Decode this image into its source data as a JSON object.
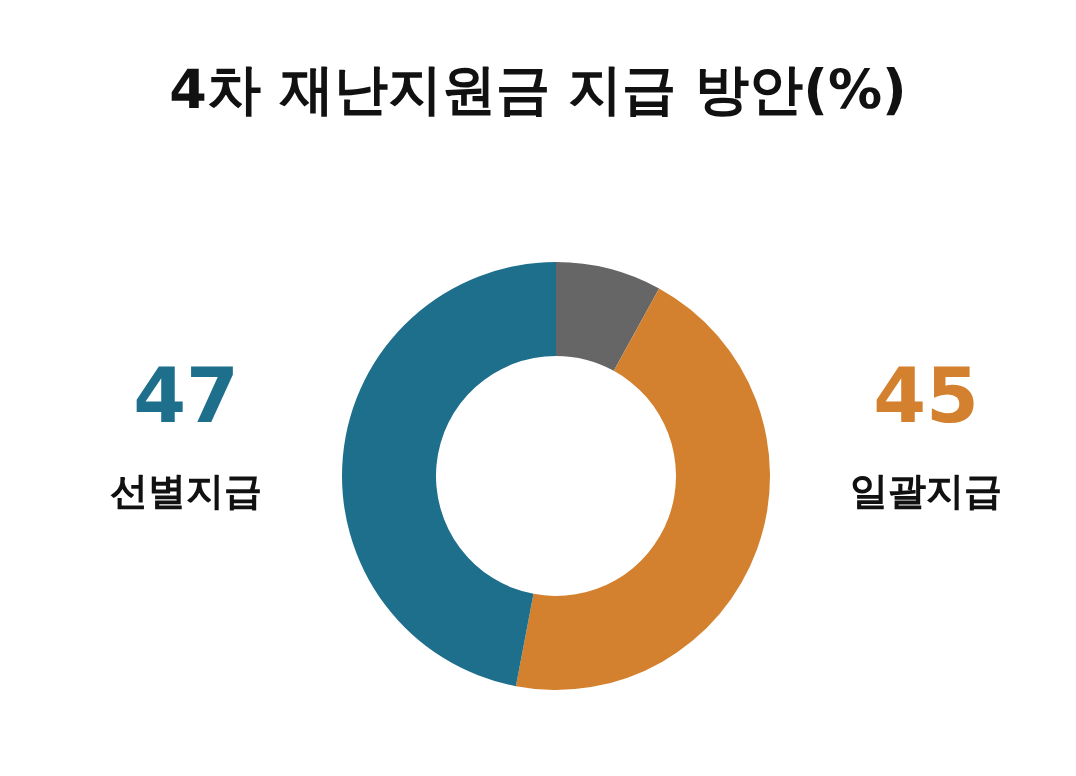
{
  "chart_data": {
    "type": "donut",
    "title": "4차 재난지원금 지급 방안(%)",
    "categories": [
      null,
      "일괄지급",
      "선별지급"
    ],
    "values": [
      8,
      45,
      47
    ],
    "colors": [
      "#666666",
      "#d4812f",
      "#1e6f8c"
    ],
    "value_labels": [
      null,
      "45",
      "47"
    ]
  }
}
